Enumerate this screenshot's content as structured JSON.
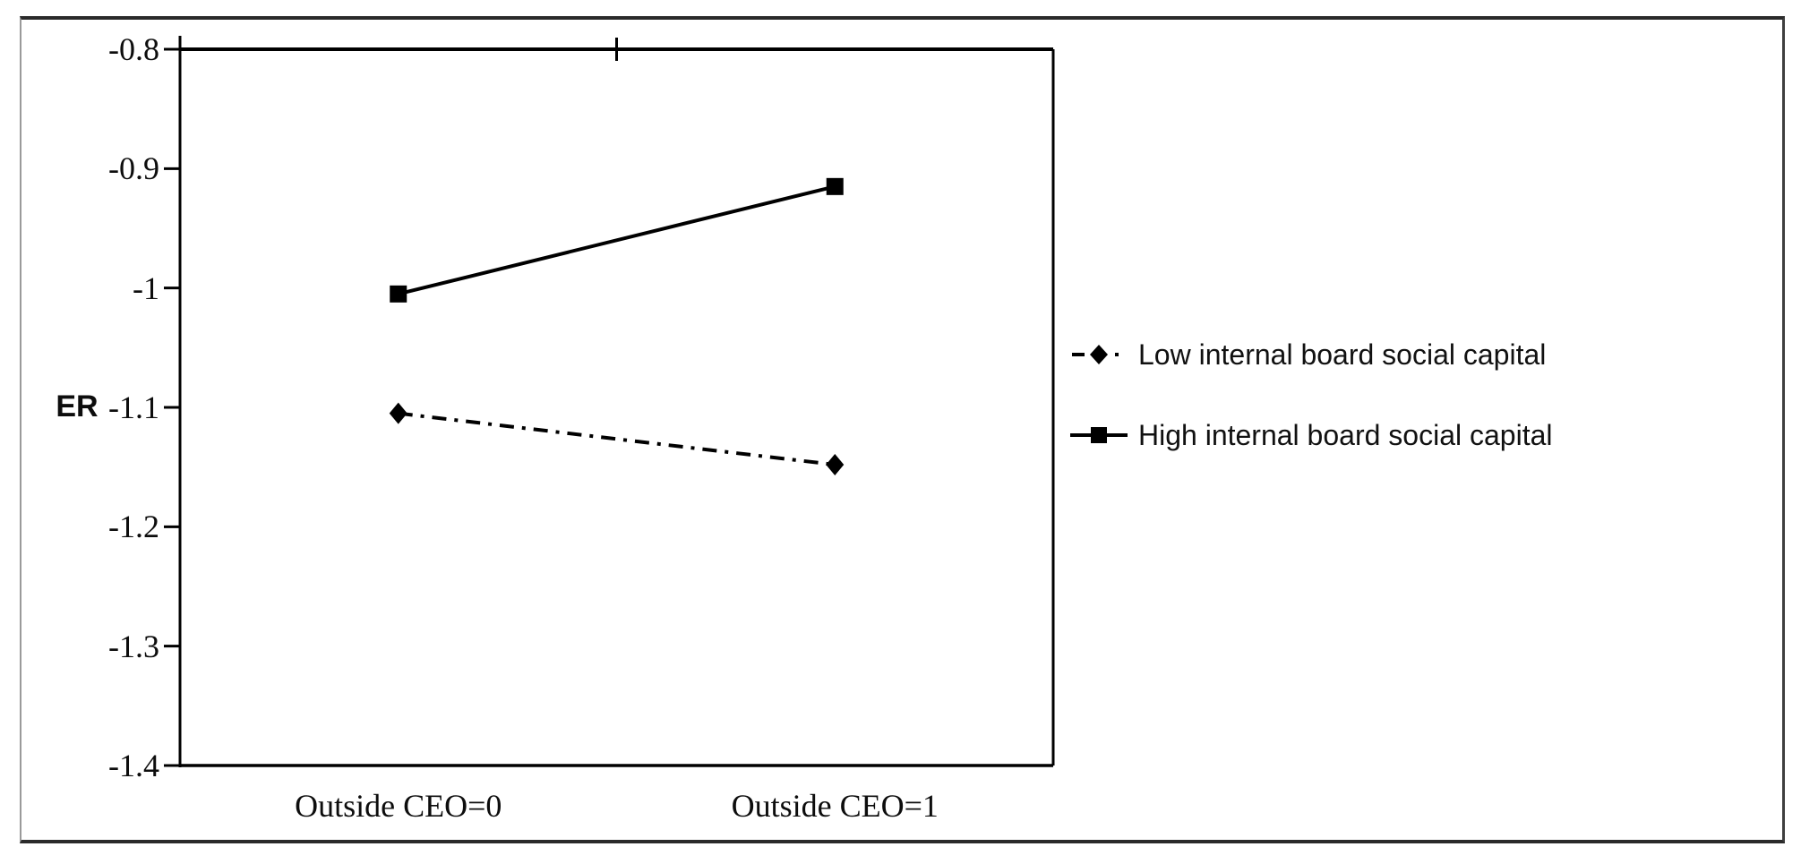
{
  "figure": {
    "background": "#ffffff",
    "frame_color": "#2b2b2b",
    "line_color": "#000000"
  },
  "chart_data": {
    "type": "line",
    "title": "",
    "xlabel": "",
    "ylabel": "ER",
    "categories": [
      "Outside CEO=0",
      "Outside CEO=1"
    ],
    "series": [
      {
        "name": "Low internal board social capital",
        "marker": "diamond",
        "line_style": "dash-dot",
        "color": "#000000",
        "values": [
          -1.105,
          -1.148
        ]
      },
      {
        "name": "High internal board social capital",
        "marker": "square",
        "line_style": "solid",
        "color": "#000000",
        "values": [
          -1.005,
          -0.915
        ]
      }
    ],
    "ylim": [
      -1.4,
      -0.8
    ],
    "yticks": [
      -0.8,
      -0.9,
      -1,
      -1.1,
      -1.2,
      -1.3,
      -1.4
    ],
    "ytick_labels": [
      "-0.8",
      "-0.9",
      "-1",
      "-1.1",
      "-1.2",
      "-1.3",
      "-1.4"
    ],
    "grid": false,
    "legend_position": "right-middle"
  }
}
